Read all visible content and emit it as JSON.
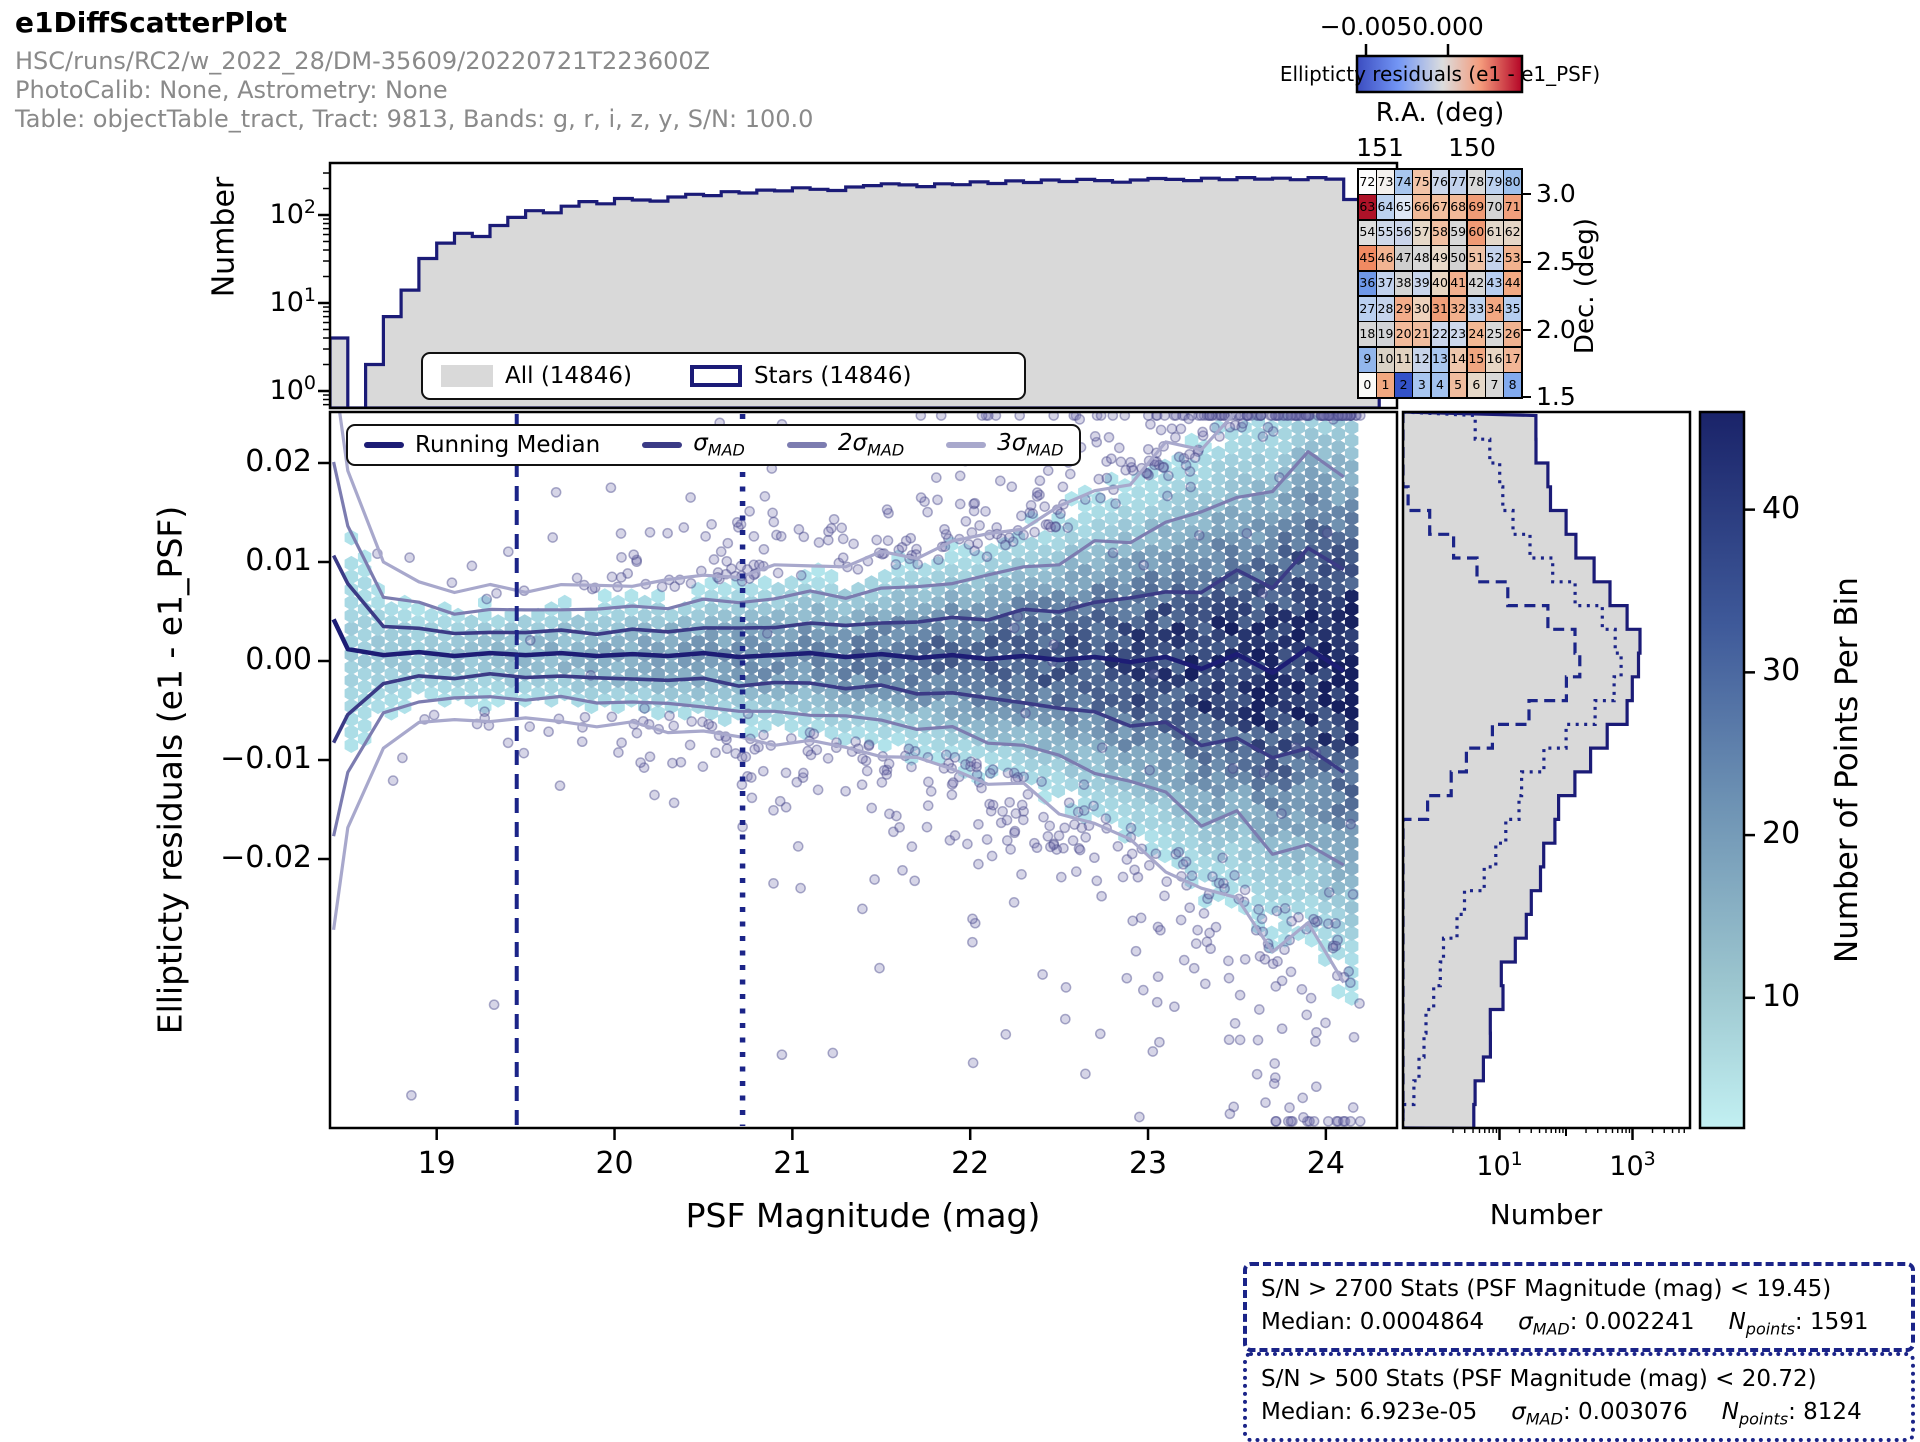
{
  "header": {
    "title": "e1DiffScatterPlot",
    "subtitle1": "HSC/runs/RC2/w_2022_28/DM-35609/20220721T223600Z",
    "subtitle2": "PhotoCalib: None, Astrometry: None",
    "subtitle3": "Table: objectTable_tract, Tract: 9813, Bands: g, r, i, z, y, S/N: 100.0"
  },
  "colors": {
    "navy": "#1b1b77",
    "dark_navy_line": "#1d1d75",
    "sigma1": "#3b3b86",
    "sigma2": "#7c7cb0",
    "sigma3": "#a8a8cc",
    "gray_fill": "#d9d9d9",
    "vline": "#1b2488",
    "hex_low": "#b9edf2",
    "hex_high": "#16205f"
  },
  "chart_data": [
    {
      "id": "top_histogram",
      "type": "bar",
      "ylabel": "Number",
      "yscale": "log",
      "yticks": [
        {
          "v": 100,
          "b": "10",
          "e": "2"
        },
        {
          "v": 10,
          "b": "10",
          "e": "1"
        },
        {
          "v": 1,
          "b": "10",
          "e": "0"
        }
      ],
      "bin_start": 18.4,
      "bin_width": 0.1,
      "counts": [
        4,
        0,
        2,
        7,
        14,
        32,
        48,
        62,
        57,
        76,
        94,
        112,
        106,
        126,
        142,
        134,
        154,
        148,
        144,
        160,
        172,
        166,
        184,
        178,
        192,
        188,
        204,
        196,
        190,
        208,
        216,
        226,
        220,
        210,
        226,
        221,
        238,
        228,
        244,
        234,
        250,
        240,
        254,
        246,
        236,
        250,
        260,
        254,
        246,
        262,
        252,
        266,
        256,
        262,
        252,
        266,
        256,
        150,
        10
      ],
      "legend": [
        {
          "label": "All (14846)",
          "swatch": "fill"
        },
        {
          "label": "Stars (14846)",
          "swatch": "outline"
        }
      ]
    },
    {
      "id": "main_plot",
      "type": "hexbin-scatter",
      "xlabel": "PSF Magnitude (mag)",
      "ylabel": "Ellipticty residuals (e1 - e1_PSF)",
      "xlim": [
        18.4,
        24.4
      ],
      "ylim": [
        -0.047,
        0.0252
      ],
      "xticks": [
        {
          "v": 19,
          "label": "19"
        },
        {
          "v": 20,
          "label": "20"
        },
        {
          "v": 21,
          "label": "21"
        },
        {
          "v": 22,
          "label": "22"
        },
        {
          "v": 23,
          "label": "23"
        },
        {
          "v": 24,
          "label": "24"
        }
      ],
      "yticks": [
        {
          "v": 0.02,
          "label": "0.02"
        },
        {
          "v": 0.01,
          "label": "0.01"
        },
        {
          "v": 0,
          "label": "0.00"
        },
        {
          "v": -0.01,
          "label": "−0.01"
        },
        {
          "v": -0.02,
          "label": "−0.02"
        }
      ],
      "series": {
        "mags": [
          18.5,
          18.7,
          18.9,
          19.1,
          19.3,
          19.5,
          19.7,
          19.9,
          20.1,
          20.3,
          20.5,
          20.7,
          20.9,
          21.1,
          21.3,
          21.5,
          21.7,
          21.9,
          22.1,
          22.3,
          22.5,
          22.7,
          22.9,
          23.1,
          23.3,
          23.5,
          23.7,
          23.9,
          24.1
        ],
        "running_median": [
          0.0012,
          0.0006,
          0.0009,
          0.0005,
          0.0008,
          0.0006,
          0.0008,
          0.0005,
          0.0007,
          0.0005,
          0.0008,
          0.0004,
          0.0006,
          0.0008,
          0.0004,
          0.0007,
          0.0003,
          0.0006,
          0.0002,
          0.0005,
          0.0001,
          0.0004,
          -0.0001,
          0.0004,
          -0.0008,
          0.0007,
          -0.0012,
          0.0013,
          -0.001
        ],
        "sigma_mad": [
          0.0063,
          0.003,
          0.0024,
          0.0022,
          0.0022,
          0.0022,
          0.0023,
          0.0023,
          0.0024,
          0.0025,
          0.0026,
          0.0028,
          0.0029,
          0.003,
          0.0031,
          0.0033,
          0.0035,
          0.0038,
          0.0041,
          0.0045,
          0.005,
          0.0056,
          0.0062,
          0.0069,
          0.0076,
          0.0083,
          0.009,
          0.0097,
          0.0103
        ]
      },
      "sigma_multipliers": [
        1,
        2,
        3
      ],
      "vlines": [
        {
          "x": 19.45,
          "style": "dashed"
        },
        {
          "x": 20.72,
          "style": "dotted"
        }
      ],
      "legend": [
        {
          "pre": "Running Median",
          "sub": "",
          "color": "#1d1d75"
        },
        {
          "pre": "σ",
          "sub": "MAD",
          "color": "#3b3b86"
        },
        {
          "pre": "2σ",
          "sub": "MAD",
          "color": "#7c7cb0"
        },
        {
          "pre": "3σ",
          "sub": "MAD",
          "color": "#a8a8cc"
        }
      ],
      "hexbin": {
        "hex_radius": 7.8,
        "col_step_mag": 0.075,
        "row_step_val": 0.00131,
        "amp_min": 4,
        "amp_max": 46,
        "sigma_scale": 1.12,
        "mag_range": [
          18.52,
          24.16
        ]
      },
      "scatter": {
        "n": 720,
        "seed": 11
      }
    },
    {
      "id": "right_histogram",
      "type": "histogram",
      "orientation": "horizontal",
      "xscale": "log",
      "xlabel": "Number",
      "xticks": [
        {
          "v": 10,
          "b": "10",
          "e": "1"
        },
        {
          "v": 1000,
          "b": "10",
          "e": "3"
        }
      ],
      "bin_step_val": 0.0024,
      "profiles": {
        "all": {
          "style": "solid-fill",
          "components": [
            [
              1250,
              0.0045
            ],
            [
              130,
              0.013
            ],
            [
              10,
              0.032
            ]
          ]
        },
        "sn500": {
          "style": "dotted",
          "components": [
            [
              640,
              0.0036
            ],
            [
              45,
              0.01
            ],
            [
              2,
              0.025
            ]
          ]
        },
        "sn2700": {
          "style": "dashed",
          "components": [
            [
              150,
              0.0028
            ],
            [
              8,
              0.007
            ]
          ]
        }
      }
    },
    {
      "id": "density_colorbar",
      "type": "colorbar",
      "label": "Number of Points Per Bin",
      "ticks": [
        10,
        20,
        30,
        40
      ],
      "vmin": 2,
      "vmax": 46
    },
    {
      "id": "radec_heatmap",
      "type": "heatmap",
      "xlabel": "R.A. (deg)",
      "ylabel": "Dec. (deg)",
      "xticks": [
        "151",
        "150"
      ],
      "yticks": [
        "3.0",
        "2.5",
        "2.0",
        "1.5"
      ],
      "colorbar": {
        "label": "Ellipticty residuals (e1 - e1_PSF)",
        "ticks": [
          "−0.005",
          "0.000"
        ]
      },
      "cells": [
        [
          72,
          "#fdfdfd"
        ],
        [
          73,
          "#f4f1ee"
        ],
        [
          74,
          "#a8c6ee"
        ],
        [
          75,
          "#f2c4a8"
        ],
        [
          76,
          "#ccd8ec"
        ],
        [
          77,
          "#c2d2ec"
        ],
        [
          78,
          "#dadada"
        ],
        [
          79,
          "#bcd2f0"
        ],
        [
          80,
          "#9ec0ec"
        ],
        [
          63,
          "#ae1228"
        ],
        [
          64,
          "#bcd2f0"
        ],
        [
          65,
          "#dde6f4"
        ],
        [
          66,
          "#f2ba98"
        ],
        [
          67,
          "#f2bf9f"
        ],
        [
          68,
          "#f2ba98"
        ],
        [
          69,
          "#f09c76"
        ],
        [
          70,
          "#d4d4d4"
        ],
        [
          71,
          "#f0a07c"
        ],
        [
          54,
          "#dedede"
        ],
        [
          55,
          "#ced8ea"
        ],
        [
          56,
          "#cad4ea"
        ],
        [
          57,
          "#e6d8c8"
        ],
        [
          58,
          "#f2c0a2"
        ],
        [
          59,
          "#d8d8d8"
        ],
        [
          60,
          "#f09a74"
        ],
        [
          61,
          "#e4d8ca"
        ],
        [
          62,
          "#e6d6c6"
        ],
        [
          45,
          "#f08a62"
        ],
        [
          46,
          "#f2b492"
        ],
        [
          47,
          "#cecece"
        ],
        [
          48,
          "#d8d8d8"
        ],
        [
          49,
          "#e8d8c8"
        ],
        [
          50,
          "#d2d2d2"
        ],
        [
          51,
          "#eec2a6"
        ],
        [
          52,
          "#c4d3ec"
        ],
        [
          53,
          "#f2b28e"
        ],
        [
          36,
          "#6f98e8"
        ],
        [
          37,
          "#c2d2ee"
        ],
        [
          38,
          "#d4d4d4"
        ],
        [
          39,
          "#c8d5ec"
        ],
        [
          40,
          "#e9d6c2"
        ],
        [
          41,
          "#f2b08e"
        ],
        [
          42,
          "#d6d6d6"
        ],
        [
          43,
          "#b8cef0"
        ],
        [
          44,
          "#f2aa84"
        ],
        [
          27,
          "#bad0f0"
        ],
        [
          28,
          "#c6d4ec"
        ],
        [
          29,
          "#f2ac8a"
        ],
        [
          30,
          "#eed2bc"
        ],
        [
          31,
          "#f09e78"
        ],
        [
          32,
          "#f2b08c"
        ],
        [
          33,
          "#bed2ee"
        ],
        [
          34,
          "#f2a882"
        ],
        [
          35,
          "#b6cdf0"
        ],
        [
          18,
          "#d6d6d6"
        ],
        [
          19,
          "#d2d3d6"
        ],
        [
          20,
          "#f2ba9a"
        ],
        [
          21,
          "#f0bc9e"
        ],
        [
          22,
          "#cad6ec"
        ],
        [
          23,
          "#ced8ec"
        ],
        [
          24,
          "#f2b894"
        ],
        [
          25,
          "#d8d8d8"
        ],
        [
          26,
          "#f0b290"
        ],
        [
          9,
          "#92b6ec"
        ],
        [
          10,
          "#dad2c6"
        ],
        [
          11,
          "#e2d2c0"
        ],
        [
          12,
          "#c8d4ea"
        ],
        [
          13,
          "#aac8f0"
        ],
        [
          14,
          "#eec6ac"
        ],
        [
          15,
          "#f0a680"
        ],
        [
          16,
          "#e8d6c4"
        ],
        [
          17,
          "#f2b696"
        ],
        [
          0,
          "#fbfaf8"
        ],
        [
          1,
          "#f2a880"
        ],
        [
          2,
          "#3352c8"
        ],
        [
          3,
          "#a8c6f0"
        ],
        [
          4,
          "#a2c2f0"
        ],
        [
          5,
          "#f0bc9e"
        ],
        [
          6,
          "#e6d8c8"
        ],
        [
          7,
          "#d8d8d8"
        ],
        [
          8,
          "#82aaee"
        ]
      ]
    }
  ],
  "stats_boxes": [
    {
      "style": "dashed",
      "title": "S/N > 2700 Stats (PSF Magnitude (mag) < 19.45)",
      "values": [
        {
          "pre": "Median: 0.0004864",
          "sub": "",
          "post": ""
        },
        {
          "pre": "σ",
          "sub": "MAD",
          "post": ": 0.002241"
        },
        {
          "pre": "N",
          "sub": "points",
          "post": ": 1591"
        }
      ]
    },
    {
      "style": "dotted",
      "title": "S/N > 500 Stats (PSF Magnitude (mag) < 20.72)",
      "values": [
        {
          "pre": "Median: 6.923e-05",
          "sub": "",
          "post": ""
        },
        {
          "pre": "σ",
          "sub": "MAD",
          "post": ": 0.003076"
        },
        {
          "pre": "N",
          "sub": "points",
          "post": ": 8124"
        }
      ]
    }
  ]
}
